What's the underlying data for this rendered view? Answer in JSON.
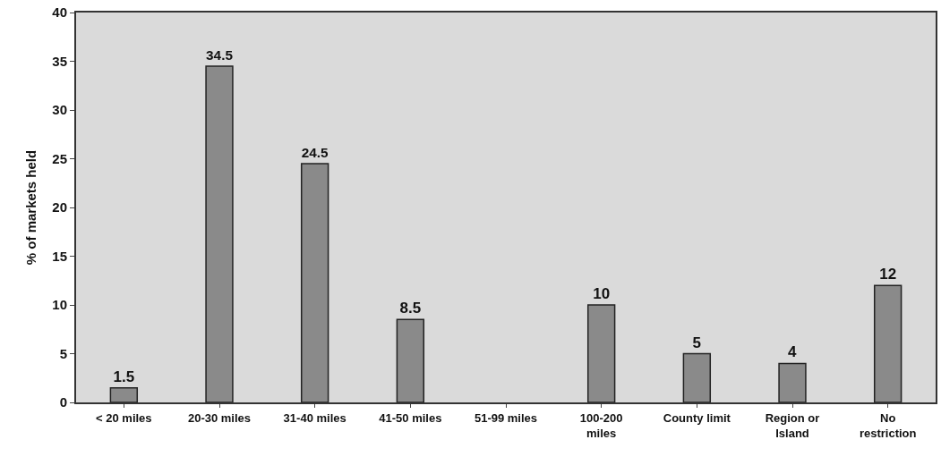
{
  "chart_data": {
    "type": "bar",
    "ylabel": "% of markets held",
    "categories": [
      "< 20 miles",
      "20-30 miles",
      "31-40 miles",
      "41-50 miles",
      "51-99 miles",
      "100-200\nmiles",
      "County limit",
      "Region or\nIsland",
      "No\nrestriction"
    ],
    "values": [
      1.5,
      34.5,
      24.5,
      8.5,
      null,
      10,
      5,
      4,
      12
    ],
    "color": "#8a8a8a",
    "ylim": [
      0,
      40
    ],
    "yticks": [
      0,
      5,
      10,
      15,
      20,
      25,
      30,
      35,
      40
    ],
    "grid": false,
    "data_labels": true
  }
}
